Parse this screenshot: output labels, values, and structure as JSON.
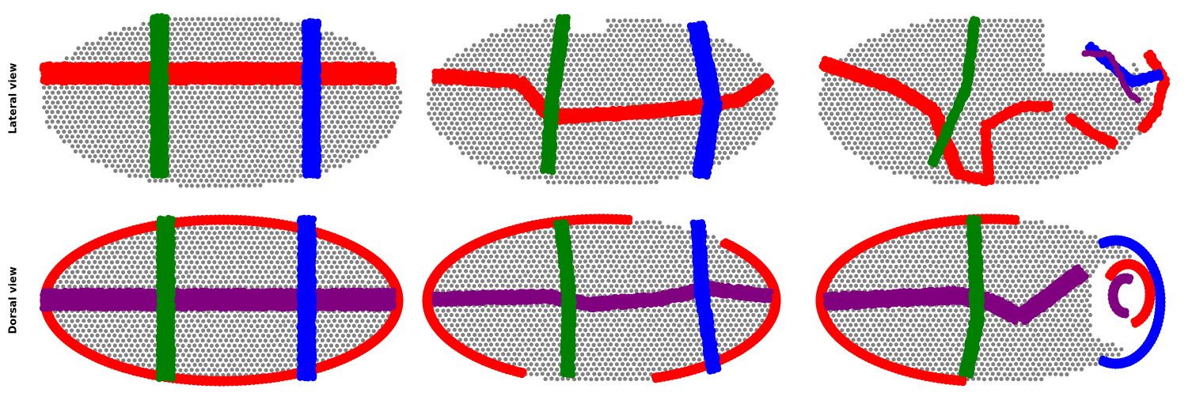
{
  "rows": {
    "lateral": {
      "label": "Lateral view"
    },
    "dorsal": {
      "label": "Dorsal view"
    }
  },
  "colors": {
    "cell": "#808080",
    "red": "#ff0000",
    "green": "#008000",
    "blue": "#0000ff",
    "purple": "#800080"
  }
}
